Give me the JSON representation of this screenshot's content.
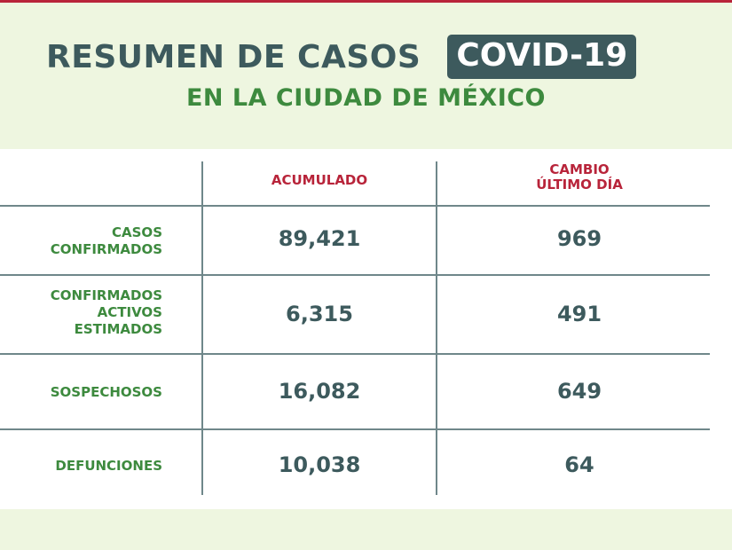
{
  "header": {
    "title": "RESUMEN DE CASOS",
    "badge": "COVID-19",
    "subtitle": "EN LA CIUDAD DE MÉXICO"
  },
  "table": {
    "columns": [
      "ACUMULADO",
      "CAMBIO",
      "ÚLTIMO DÍA"
    ],
    "rows": [
      {
        "label_lines": [
          "CASOS",
          "CONFIRMADOS"
        ],
        "acumulado": "89,421",
        "cambio": "969"
      },
      {
        "label_lines": [
          "CONFIRMADOS",
          "ACTIVOS",
          "ESTIMADOS"
        ],
        "acumulado": "6,315",
        "cambio": "491"
      },
      {
        "label_lines": [
          "SOSPECHOSOS"
        ],
        "acumulado": "16,082",
        "cambio": "649"
      },
      {
        "label_lines": [
          "DEFUNCIONES"
        ],
        "acumulado": "10,038",
        "cambio": "64"
      }
    ]
  },
  "colors": {
    "title": "#3d5a5d",
    "subtitle": "#3d8a3e",
    "column_header": "#b8243a",
    "row_label": "#3d8a3e",
    "value": "#3d5a5d",
    "background": "#eef6e0"
  }
}
